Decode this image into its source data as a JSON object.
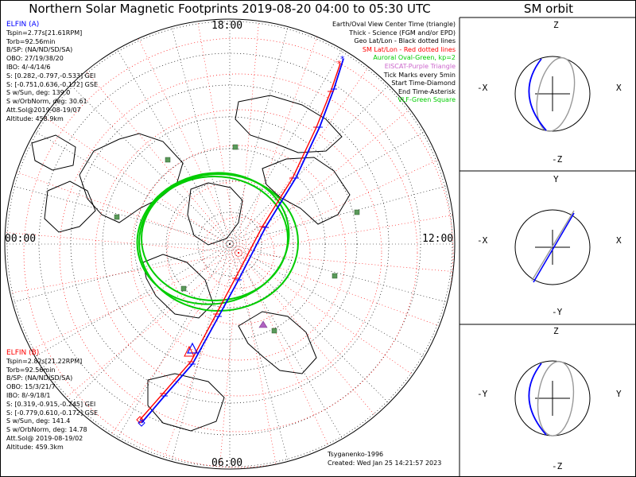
{
  "title": "Northern Solar Magnetic Footprints 2019-08-20 04:00 to 05:30 UTC",
  "orbit_title": "SM orbit",
  "clock": {
    "top": "18:00",
    "bottom": "06:00",
    "left": "00:00",
    "right": "12:00"
  },
  "elfin_a": {
    "name": "ELFIN (A)",
    "color": "#0000ff",
    "lines": [
      "Tspin=2.77s[21.61RPM]",
      "Torb=92.56min",
      "B/SP: (NA/ND/SD/SA)",
      "OBO: 27/19/38/20",
      "IBO: 4/-4/14/6",
      "S: [0.282,-0.797,-0.533] GEI",
      "S: [-0.751,0.636,-0.172] GSE",
      "S w/Sun, deg: 139.0",
      "S w/OrbNorm, deg: 30.61",
      "Att.Sol@2019-08-19/07",
      "Altitude: 458.9km"
    ]
  },
  "elfin_b": {
    "name": "ELFIN (B)",
    "color": "#ff0000",
    "lines": [
      "Tspin=2.82s[21.22RPM]",
      "Torb=92.56min",
      "B/SP: (NA/ND/SD/SA)",
      "OBO: 15/3/21/7",
      "IBO: 8/-9/18/1",
      "S: [0.319,-0.915,-0.245] GEI",
      "S: [-0.779,0.610,-0.172] GSE",
      "S w/Sun, deg: 141.4",
      "S w/OrbNorm, deg: 14.78",
      "Att.Sol@ 2019-08-19/02",
      "Altitude: 459.3km"
    ]
  },
  "legend": [
    {
      "text": "Earth/Oval View Center Time (triangle)",
      "color": "#000000"
    },
    {
      "text": "Thick - Science (FGM and/or EPD)",
      "color": "#000000"
    },
    {
      "text": "Geo Lat/Lon - Black dotted lines",
      "color": "#000000"
    },
    {
      "text": "SM Lat/Lon - Red dotted lines",
      "color": "#ff0000"
    },
    {
      "text": "Auroral Oval-Green, kp=2",
      "color": "#00cc00"
    },
    {
      "text": "EISCAT-Purple Triangle",
      "color": "#cc66cc"
    },
    {
      "text": "Tick Marks every 5min",
      "color": "#000000"
    },
    {
      "text": "Start Time-Diamond",
      "color": "#000000"
    },
    {
      "text": "End Time-Asterisk",
      "color": "#000000"
    },
    {
      "text": "VLF-Green Square",
      "color": "#00cc00"
    }
  ],
  "credits": {
    "model": "Tsyganenko-1996",
    "created": "Created: Wed Jan 25 14:21:57 2023"
  },
  "orbit_panels": [
    {
      "top": "Z",
      "bottom": "-Z",
      "left": "-X",
      "right": "X"
    },
    {
      "top": "Y",
      "bottom": "-Y",
      "left": "-X",
      "right": "X"
    },
    {
      "top": "Z",
      "bottom": "-Z",
      "left": "-Y",
      "right": "Y"
    }
  ],
  "colors": {
    "elfin_a": "#0000ff",
    "elfin_b": "#ff0000",
    "oval": "#00cc00",
    "eiscat": "#b060c0",
    "vlf": "#5a9a5a",
    "coast": "#000000"
  }
}
